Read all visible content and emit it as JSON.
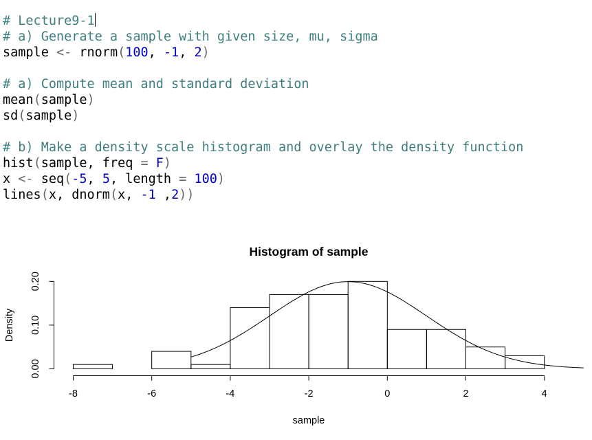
{
  "editor": {
    "lines": [
      {
        "segments": [
          {
            "t": "# Lecture9-1",
            "c": "cmt"
          }
        ],
        "cursor": true
      },
      {
        "segments": [
          {
            "t": "# a) Generate a sample with given size, mu, sigma",
            "c": "cmt"
          }
        ]
      },
      {
        "segments": [
          {
            "t": "sample ",
            "c": ""
          },
          {
            "t": "<-",
            "c": "op"
          },
          {
            "t": " rnorm",
            "c": ""
          },
          {
            "t": "(",
            "c": "op"
          },
          {
            "t": "100",
            "c": "num"
          },
          {
            "t": ", ",
            "c": ""
          },
          {
            "t": "-1",
            "c": "num"
          },
          {
            "t": ", ",
            "c": ""
          },
          {
            "t": "2",
            "c": "num"
          },
          {
            "t": ")",
            "c": "op"
          }
        ]
      },
      {
        "blank": true
      },
      {
        "segments": [
          {
            "t": "# a) Compute mean and standard deviation",
            "c": "cmt"
          }
        ]
      },
      {
        "segments": [
          {
            "t": "mean",
            "c": ""
          },
          {
            "t": "(",
            "c": "op"
          },
          {
            "t": "sample",
            "c": ""
          },
          {
            "t": ")",
            "c": "op"
          }
        ]
      },
      {
        "segments": [
          {
            "t": "sd",
            "c": ""
          },
          {
            "t": "(",
            "c": "op"
          },
          {
            "t": "sample",
            "c": ""
          },
          {
            "t": ")",
            "c": "op"
          }
        ]
      },
      {
        "blank": true
      },
      {
        "segments": [
          {
            "t": "# b) Make a density scale histogram and overlay the density function",
            "c": "cmt"
          }
        ]
      },
      {
        "segments": [
          {
            "t": "hist",
            "c": ""
          },
          {
            "t": "(",
            "c": "op"
          },
          {
            "t": "sample, freq ",
            "c": ""
          },
          {
            "t": "=",
            "c": "op"
          },
          {
            "t": " ",
            "c": ""
          },
          {
            "t": "F",
            "c": "num"
          },
          {
            "t": ")",
            "c": "op"
          }
        ]
      },
      {
        "segments": [
          {
            "t": "x ",
            "c": ""
          },
          {
            "t": "<-",
            "c": "op"
          },
          {
            "t": " seq",
            "c": ""
          },
          {
            "t": "(",
            "c": "op"
          },
          {
            "t": "-5",
            "c": "num"
          },
          {
            "t": ", ",
            "c": ""
          },
          {
            "t": "5",
            "c": "num"
          },
          {
            "t": ", length ",
            "c": ""
          },
          {
            "t": "=",
            "c": "op"
          },
          {
            "t": " ",
            "c": ""
          },
          {
            "t": "100",
            "c": "num"
          },
          {
            "t": ")",
            "c": "op"
          }
        ]
      },
      {
        "segments": [
          {
            "t": "lines",
            "c": ""
          },
          {
            "t": "(",
            "c": "op"
          },
          {
            "t": "x, dnorm",
            "c": ""
          },
          {
            "t": "(",
            "c": "op"
          },
          {
            "t": "x, ",
            "c": ""
          },
          {
            "t": "-1",
            "c": "num"
          },
          {
            "t": " ,",
            "c": ""
          },
          {
            "t": "2",
            "c": "num"
          },
          {
            "t": "))",
            "c": "op"
          }
        ]
      }
    ]
  },
  "chart_data": {
    "type": "bar",
    "title": "Histogram of sample",
    "xlabel": "sample",
    "ylabel": "Density",
    "bins": [
      {
        "start": -8,
        "end": -7,
        "density": 0.01
      },
      {
        "start": -7,
        "end": -6,
        "density": 0.0
      },
      {
        "start": -6,
        "end": -5,
        "density": 0.04
      },
      {
        "start": -5,
        "end": -4,
        "density": 0.01
      },
      {
        "start": -4,
        "end": -3,
        "density": 0.14
      },
      {
        "start": -3,
        "end": -2,
        "density": 0.17
      },
      {
        "start": -2,
        "end": -1,
        "density": 0.17
      },
      {
        "start": -1,
        "end": 0,
        "density": 0.2
      },
      {
        "start": 0,
        "end": 1,
        "density": 0.09
      },
      {
        "start": 1,
        "end": 2,
        "density": 0.09
      },
      {
        "start": 2,
        "end": 3,
        "density": 0.05
      },
      {
        "start": 3,
        "end": 4,
        "density": 0.03
      }
    ],
    "curve": {
      "type": "normal_density",
      "mean": -1,
      "sd": 2,
      "x_from": -5,
      "x_to": 5,
      "n": 100
    },
    "x_ticks": [
      -8,
      -6,
      -4,
      -2,
      0,
      2,
      4
    ],
    "x_tick_labels": [
      "-8",
      "-6",
      "-4",
      "-2",
      "0",
      "2",
      "4"
    ],
    "y_ticks": [
      0.0,
      0.1,
      0.2
    ],
    "y_tick_labels": [
      "0.00",
      "0.10",
      "0.20"
    ],
    "xlim": [
      -8,
      4.5
    ],
    "ylim": [
      0,
      0.2
    ],
    "grid": false
  }
}
